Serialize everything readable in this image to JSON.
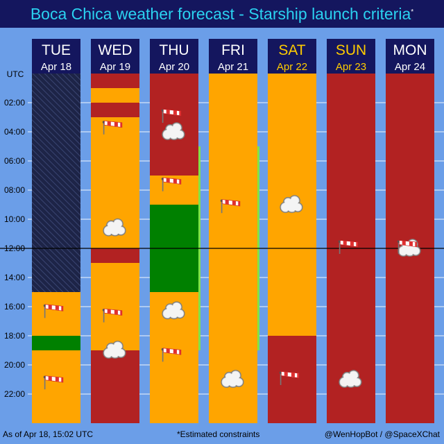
{
  "header": {
    "title": "Boca Chica weather forecast - Starship launch criteria",
    "title_mark": "*"
  },
  "chart_data": {
    "type": "timeline",
    "y_axis_label": "UTC",
    "y_ticks": [
      "02:00",
      "04:00",
      "06:00",
      "08:00",
      "10:00",
      "12:00",
      "14:00",
      "16:00",
      "18:00",
      "20:00",
      "22:00"
    ],
    "y_range_hours": [
      0,
      24
    ],
    "now_line_hour": 12,
    "colors": {
      "header_bg": "#14165e",
      "weekday_text": "#ffffff",
      "weekend_text": "#ffcc00",
      "no_go": "#b22222",
      "marginal": "#ffa500",
      "go": "#008000",
      "unknown_past": "#1d2447",
      "gridline": "#ffffff",
      "now_line": "#000000",
      "bar_edge": "#7fe34a"
    },
    "days": [
      {
        "day": "TUE",
        "date": "Apr 18",
        "weekend": false,
        "segments": [
          {
            "start": 0,
            "end": 15,
            "status": "unknown_past"
          },
          {
            "start": 15,
            "end": 18,
            "status": "marginal"
          },
          {
            "start": 18,
            "end": 19,
            "status": "go"
          },
          {
            "start": 19,
            "end": 24,
            "status": "marginal"
          }
        ],
        "icons": [
          {
            "type": "wind-icon",
            "hour": 16.2
          },
          {
            "type": "wind-icon",
            "hour": 21.1
          }
        ]
      },
      {
        "day": "WED",
        "date": "Apr 19",
        "weekend": false,
        "segments": [
          {
            "start": 0,
            "end": 1,
            "status": "no_go"
          },
          {
            "start": 1,
            "end": 2,
            "status": "marginal"
          },
          {
            "start": 2,
            "end": 3,
            "status": "no_go"
          },
          {
            "start": 3,
            "end": 12,
            "status": "marginal"
          },
          {
            "start": 12,
            "end": 13,
            "status": "no_go"
          },
          {
            "start": 13,
            "end": 19,
            "status": "marginal"
          },
          {
            "start": 19,
            "end": 24,
            "status": "no_go"
          }
        ],
        "icons": [
          {
            "type": "wind-icon",
            "hour": 3.6
          },
          {
            "type": "cloud-icon",
            "hour": 10.6
          },
          {
            "type": "wind-icon",
            "hour": 16.5
          },
          {
            "type": "cloud-icon",
            "hour": 19.0
          }
        ]
      },
      {
        "day": "THU",
        "date": "Apr 20",
        "weekend": false,
        "segments": [
          {
            "start": 0,
            "end": 7,
            "status": "no_go"
          },
          {
            "start": 7,
            "end": 9,
            "status": "marginal"
          },
          {
            "start": 9,
            "end": 15,
            "status": "go"
          },
          {
            "start": 15,
            "end": 24,
            "status": "marginal"
          }
        ],
        "edge_bar": {
          "start": 5,
          "end": 19
        },
        "icons": [
          {
            "type": "wind-icon",
            "hour": 2.8
          },
          {
            "type": "cloud-icon",
            "hour": 4.0
          },
          {
            "type": "wind-icon",
            "hour": 7.5
          },
          {
            "type": "cloud-icon",
            "hour": 16.3
          },
          {
            "type": "wind-icon",
            "hour": 19.2
          }
        ]
      },
      {
        "day": "FRI",
        "date": "Apr 21",
        "weekend": false,
        "segments": [
          {
            "start": 0,
            "end": 24,
            "status": "marginal"
          }
        ],
        "edge_bar": {
          "start": 5,
          "end": 19
        },
        "icons": [
          {
            "type": "wind-icon",
            "hour": 9.0
          },
          {
            "type": "cloud-icon",
            "hour": 21.0
          }
        ]
      },
      {
        "day": "SAT",
        "date": "Apr 22",
        "weekend": true,
        "segments": [
          {
            "start": 0,
            "end": 18,
            "status": "marginal"
          },
          {
            "start": 18,
            "end": 24,
            "status": "no_go"
          }
        ],
        "icons": [
          {
            "type": "cloud-icon",
            "hour": 9.0
          },
          {
            "type": "wind-icon",
            "hour": 20.8
          }
        ]
      },
      {
        "day": "SUN",
        "date": "Apr 23",
        "weekend": true,
        "segments": [
          {
            "start": 0,
            "end": 24,
            "status": "no_go"
          }
        ],
        "icons": [
          {
            "type": "wind-icon",
            "hour": 11.8
          },
          {
            "type": "cloud-icon",
            "hour": 21.0
          }
        ]
      },
      {
        "day": "MON",
        "date": "Apr 24",
        "weekend": false,
        "segments": [
          {
            "start": 0,
            "end": 24,
            "status": "no_go"
          }
        ],
        "icons": [
          {
            "type": "cloud-icon",
            "hour": 12.0
          },
          {
            "type": "wind-icon",
            "hour": 11.8
          }
        ]
      }
    ]
  },
  "footer": {
    "updated": "As of Apr 18, 15:02 UTC",
    "note": "*Estimated constraints",
    "credit": "@WenHopBot / @SpaceXChat"
  }
}
